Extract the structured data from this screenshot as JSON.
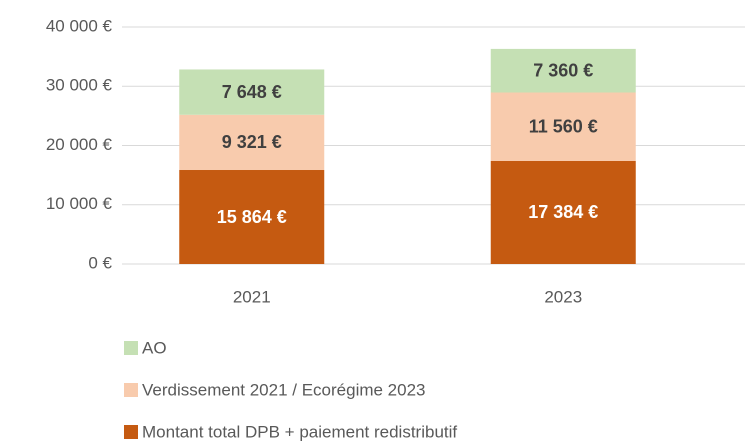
{
  "chart_data": {
    "type": "stacked_bar",
    "categories": [
      "2021",
      "2023"
    ],
    "series": [
      {
        "name": "Montant total DPB + paiement redistributif",
        "color": "#c55a11",
        "label_color": "#ffffff",
        "values": [
          15864,
          17384
        ],
        "value_labels": [
          "15 864 €",
          "17 384 €"
        ]
      },
      {
        "name": "Verdissement 2021 / Ecorégime 2023",
        "color": "#f8cbad",
        "label_color": "#404040",
        "values": [
          9321,
          11560
        ],
        "value_labels": [
          "9 321 €",
          "11 560 €"
        ]
      },
      {
        "name": "AO",
        "color": "#c5e0b4",
        "label_color": "#404040",
        "values": [
          7648,
          7360
        ],
        "value_labels": [
          "7 648 €",
          "7 360 €"
        ]
      }
    ],
    "ylim": [
      0,
      40000
    ],
    "yticks": [
      {
        "value": 0,
        "label": "0 €"
      },
      {
        "value": 10000,
        "label": "10 000 €"
      },
      {
        "value": 20000,
        "label": "20 000 €"
      },
      {
        "value": 30000,
        "label": "30 000 €"
      },
      {
        "value": 40000,
        "label": "40 000 €"
      }
    ],
    "grid": true
  }
}
